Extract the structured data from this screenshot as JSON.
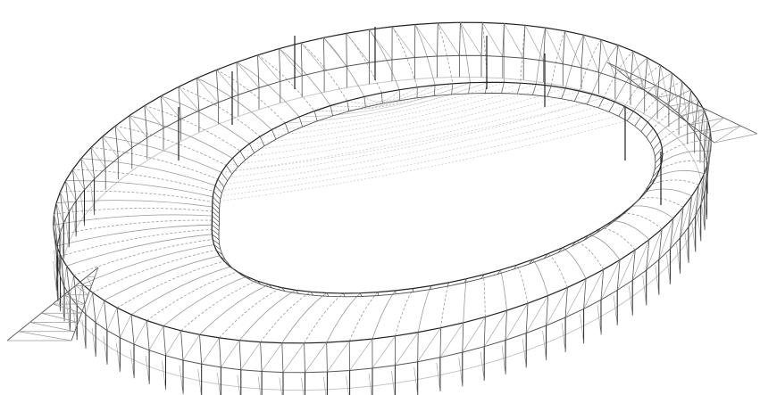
{
  "figure": {
    "description_free": true,
    "background": "#ffffff",
    "stroke_dark": "#222222",
    "stroke_mid": "#555555",
    "stroke_light": "#9a9a9a",
    "stroke_faint": "#c6c6c6"
  }
}
